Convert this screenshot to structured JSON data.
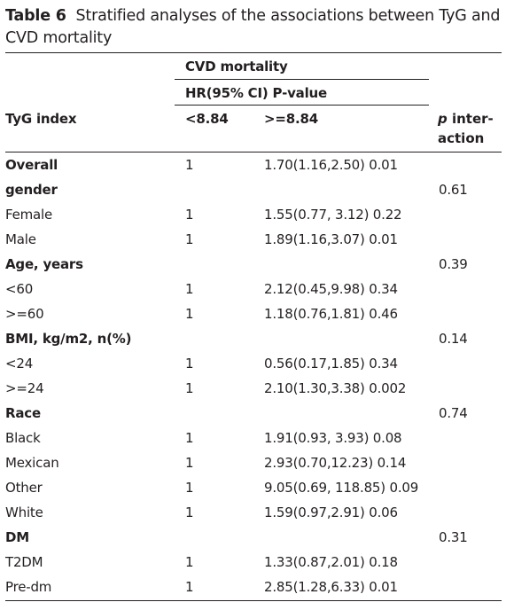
{
  "caption": {
    "number": "Table 6",
    "text": "Stratified analyses of the associations between TyG and CVD mortality"
  },
  "header": {
    "outcome": "CVD mortality",
    "measure": "HR(95% CI) P-value",
    "row_label": "TyG index",
    "col_low": "<8.84",
    "col_high": ">=8.84",
    "p_interaction_italic": "p",
    "p_interaction_rest": "inter-action"
  },
  "rows": [
    {
      "label": "Overall",
      "bold": true,
      "low": "1",
      "high": "1.70(1.16,2.50) 0.01",
      "p": ""
    },
    {
      "label": "gender",
      "bold": true,
      "low": "",
      "high": "",
      "p": "0.61"
    },
    {
      "label": "Female",
      "bold": false,
      "low": "1",
      "high": "1.55(0.77, 3.12) 0.22",
      "p": ""
    },
    {
      "label": "Male",
      "bold": false,
      "low": "1",
      "high": "1.89(1.16,3.07) 0.01",
      "p": ""
    },
    {
      "label": "Age, years",
      "bold": true,
      "low": "",
      "high": "",
      "p": "0.39"
    },
    {
      "label": "<60",
      "bold": false,
      "low": "1",
      "high": "2.12(0.45,9.98) 0.34",
      "p": ""
    },
    {
      "label": ">=60",
      "bold": false,
      "low": "1",
      "high": "1.18(0.76,1.81) 0.46",
      "p": ""
    },
    {
      "label": "BMI, kg/m2, n(%)",
      "bold": true,
      "low": "",
      "high": "",
      "p": "0.14"
    },
    {
      "label": "<24",
      "bold": false,
      "low": "1",
      "high": "0.56(0.17,1.85) 0.34",
      "p": ""
    },
    {
      "label": ">=24",
      "bold": false,
      "low": "1",
      "high": "2.10(1.30,3.38) 0.002",
      "p": ""
    },
    {
      "label": "Race",
      "bold": true,
      "low": "",
      "high": "",
      "p": "0.74"
    },
    {
      "label": "Black",
      "bold": false,
      "low": "1",
      "high": "1.91(0.93, 3.93) 0.08",
      "p": ""
    },
    {
      "label": "Mexican",
      "bold": false,
      "low": "1",
      "high": "2.93(0.70,12.23) 0.14",
      "p": ""
    },
    {
      "label": "Other",
      "bold": false,
      "low": "1",
      "high": "9.05(0.69, 118.85) 0.09",
      "p": ""
    },
    {
      "label": "White",
      "bold": false,
      "low": "1",
      "high": "1.59(0.97,2.91) 0.06",
      "p": ""
    },
    {
      "label": "DM",
      "bold": true,
      "low": "",
      "high": "",
      "p": "0.31"
    },
    {
      "label": "T2DM",
      "bold": false,
      "low": "1",
      "high": "1.33(0.87,2.01) 0.18",
      "p": ""
    },
    {
      "label": "Pre-dm",
      "bold": false,
      "low": "1",
      "high": "2.85(1.28,6.33) 0.01",
      "p": ""
    }
  ]
}
